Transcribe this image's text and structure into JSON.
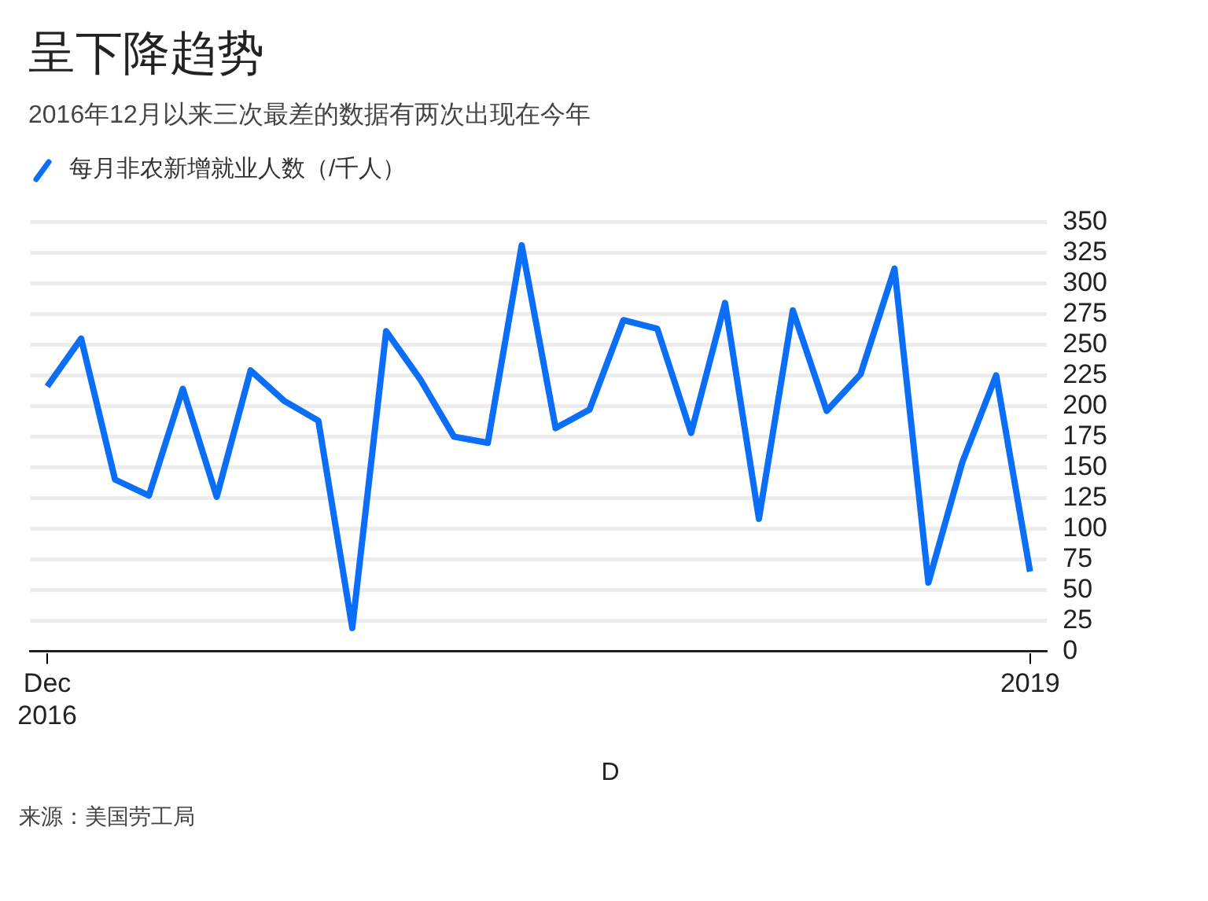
{
  "chart_data": {
    "type": "line",
    "title": "呈下降趋势",
    "subtitle": "2016年12月以来三次最差的数据有两次出现在今年",
    "xlabel": "D",
    "categories": [
      "Dec 2016",
      null,
      null,
      null,
      null,
      null,
      null,
      null,
      null,
      null,
      null,
      null,
      null,
      null,
      null,
      null,
      null,
      null,
      null,
      null,
      null,
      null,
      null,
      null,
      null,
      null,
      null,
      null,
      null,
      "2019"
    ],
    "series": [
      {
        "name": "每月非农新增就业人数（/千人）",
        "color": "#0a6ef7",
        "values": [
          216,
          255,
          140,
          127,
          214,
          126,
          229,
          204,
          188,
          19,
          261,
          222,
          175,
          170,
          331,
          182,
          197,
          270,
          263,
          178,
          284,
          108,
          278,
          196,
          226,
          312,
          56,
          154,
          225,
          65
        ]
      }
    ],
    "ylim": [
      0,
      350
    ],
    "yticks": [
      0,
      25,
      50,
      75,
      100,
      125,
      150,
      175,
      200,
      225,
      250,
      275,
      300,
      325,
      350
    ],
    "grid": "y",
    "legend": "top left",
    "marker": "none",
    "line_style": "solid",
    "annotations": [
      "来源：美国劳工局"
    ]
  }
}
